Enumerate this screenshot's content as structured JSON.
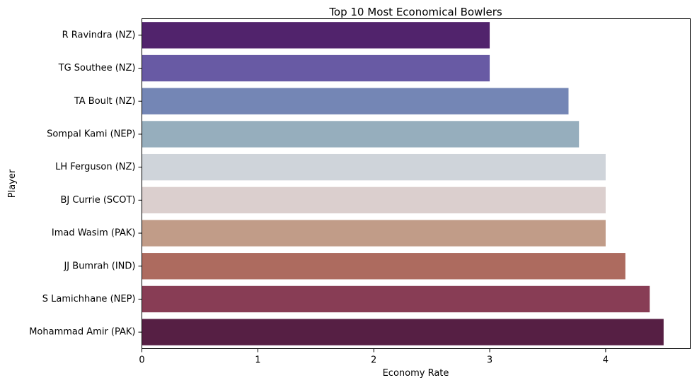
{
  "chart_data": {
    "type": "bar",
    "orientation": "horizontal",
    "title": "Top 10 Most Economical Bowlers",
    "xlabel": "Economy Rate",
    "ylabel": "Player",
    "xlim": [
      0,
      4.73
    ],
    "xticks": [
      0,
      1,
      2,
      3,
      4
    ],
    "grid": false,
    "categories": [
      "R Ravindra (NZ)",
      "TG Southee (NZ)",
      "TA Boult (NZ)",
      "Sompal Kami (NEP)",
      "LH Ferguson (NZ)",
      "BJ Currie (SCOT)",
      "Imad Wasim (PAK)",
      "JJ Bumrah (IND)",
      "S Lamichhane (NEP)",
      "Mohammad Amir (PAK)"
    ],
    "values": [
      3.0,
      3.0,
      3.68,
      3.77,
      4.0,
      4.0,
      4.0,
      4.17,
      4.38,
      4.5
    ],
    "colors": [
      "#51236c",
      "#685aa4",
      "#7486b5",
      "#96aebd",
      "#cfd4da",
      "#dbcfce",
      "#c19c88",
      "#ad6b5f",
      "#883d55",
      "#561f44"
    ]
  }
}
